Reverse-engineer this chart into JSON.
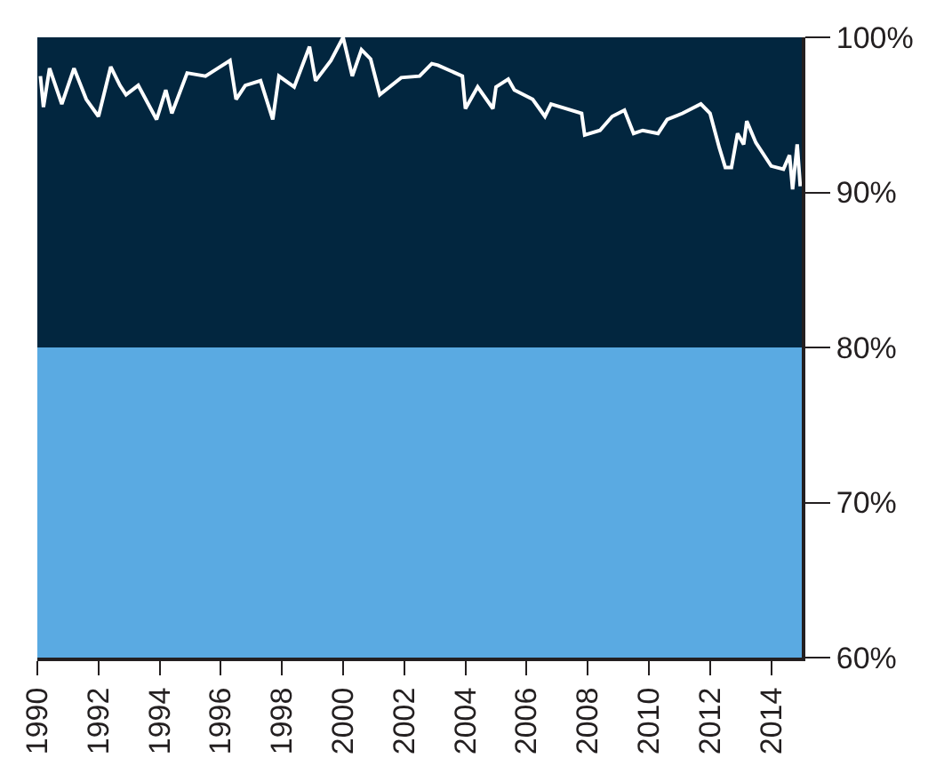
{
  "chart_data": {
    "type": "line",
    "x": [
      1990.1,
      1990.2,
      1990.4,
      1990.8,
      1991.2,
      1991.6,
      1992.0,
      1992.4,
      1992.7,
      1992.9,
      1993.3,
      1993.9,
      1994.2,
      1994.4,
      1994.9,
      1995.5,
      1995.9,
      1996.3,
      1996.5,
      1996.8,
      1997.3,
      1997.7,
      1997.9,
      1998.4,
      1998.9,
      1999.1,
      1999.6,
      2000.0,
      2000.3,
      2000.6,
      2000.9,
      2001.2,
      2001.9,
      2002.5,
      2002.9,
      2003.1,
      2003.9,
      2004.0,
      2004.4,
      2004.9,
      2005.0,
      2005.4,
      2005.6,
      2006.2,
      2006.6,
      2006.8,
      2007.8,
      2007.9,
      2008.4,
      2008.8,
      2009.2,
      2009.5,
      2009.8,
      2010.3,
      2010.6,
      2011.1,
      2011.7,
      2012.0,
      2012.3,
      2012.5,
      2012.7,
      2012.9,
      2013.1,
      2013.2,
      2013.5,
      2014.0,
      2014.4,
      2014.6,
      2014.7,
      2014.85,
      2014.95
    ],
    "series": [
      {
        "color": "#ffffff",
        "values": [
          97.5,
          95.5,
          98.0,
          95.7,
          98.0,
          96.0,
          94.9,
          98.1,
          96.9,
          96.3,
          96.9,
          94.7,
          96.6,
          95.1,
          97.7,
          97.5,
          98.0,
          98.5,
          96.0,
          96.9,
          97.2,
          94.7,
          97.5,
          96.8,
          99.4,
          97.2,
          98.5,
          100,
          97.5,
          99.2,
          98.6,
          96.3,
          97.4,
          97.5,
          98.3,
          98.2,
          97.5,
          95.4,
          96.8,
          95.4,
          96.8,
          97.3,
          96.6,
          96.0,
          94.9,
          95.7,
          95.1,
          93.7,
          94.0,
          94.9,
          95.3,
          93.8,
          94.0,
          93.8,
          94.7,
          95.1,
          95.7,
          95.1,
          92.9,
          91.6,
          91.6,
          93.8,
          93.1,
          94.6,
          93.2,
          91.7,
          91.5,
          92.4,
          90.2,
          93.1,
          90.4
        ]
      }
    ],
    "xlim": [
      1990,
      2015
    ],
    "xticks": [
      1990,
      1992,
      1994,
      1996,
      1998,
      2000,
      2002,
      2004,
      2006,
      2008,
      2010,
      2012,
      2014
    ],
    "ylim": [
      60,
      100
    ],
    "yticks": [
      {
        "value": 60,
        "label": "60%"
      },
      {
        "value": 70,
        "label": "70%"
      },
      {
        "value": 80,
        "label": "80%"
      },
      {
        "value": 90,
        "label": "90%"
      },
      {
        "value": 100,
        "label": "100%"
      }
    ],
    "bands": [
      {
        "axis": "y",
        "from": 80,
        "to": 100,
        "color": "#02263f"
      },
      {
        "axis": "y",
        "from": 60,
        "to": 80,
        "color": "#5aaae2"
      }
    ],
    "grid": false,
    "legend": false,
    "marker": "none",
    "line_style": "solid"
  }
}
